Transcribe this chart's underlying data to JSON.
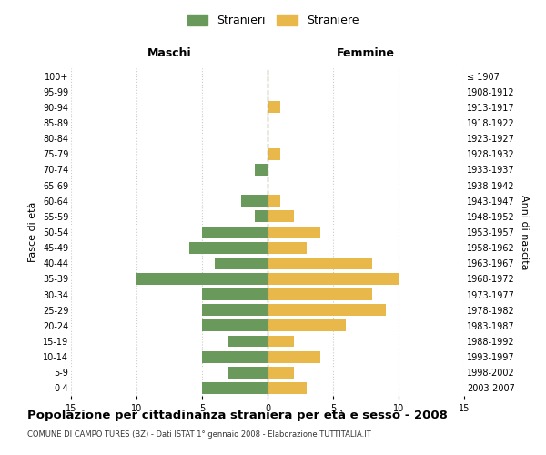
{
  "age_groups": [
    "100+",
    "95-99",
    "90-94",
    "85-89",
    "80-84",
    "75-79",
    "70-74",
    "65-69",
    "60-64",
    "55-59",
    "50-54",
    "45-49",
    "40-44",
    "35-39",
    "30-34",
    "25-29",
    "20-24",
    "15-19",
    "10-14",
    "5-9",
    "0-4"
  ],
  "birth_years": [
    "≤ 1907",
    "1908-1912",
    "1913-1917",
    "1918-1922",
    "1923-1927",
    "1928-1932",
    "1933-1937",
    "1938-1942",
    "1943-1947",
    "1948-1952",
    "1953-1957",
    "1958-1962",
    "1963-1967",
    "1968-1972",
    "1973-1977",
    "1978-1982",
    "1983-1987",
    "1988-1992",
    "1993-1997",
    "1998-2002",
    "2003-2007"
  ],
  "maschi": [
    0,
    0,
    0,
    0,
    0,
    0,
    1,
    0,
    2,
    1,
    5,
    6,
    4,
    10,
    5,
    5,
    5,
    3,
    5,
    3,
    5
  ],
  "femmine": [
    0,
    0,
    1,
    0,
    0,
    1,
    0,
    0,
    1,
    2,
    4,
    3,
    8,
    10,
    8,
    9,
    6,
    2,
    4,
    2,
    3
  ],
  "maschi_color": "#6a9a5b",
  "femmine_color": "#e8b84b",
  "title": "Popolazione per cittadinanza straniera per età e sesso - 2008",
  "subtitle": "COMUNE DI CAMPO TURES (BZ) - Dati ISTAT 1° gennaio 2008 - Elaborazione TUTTITALIA.IT",
  "xlabel_left": "Maschi",
  "xlabel_right": "Femmine",
  "ylabel_left": "Fasce di età",
  "ylabel_right": "Anni di nascita",
  "xlim": 15,
  "legend_maschi": "Stranieri",
  "legend_femmine": "Straniere",
  "bg_color": "#ffffff",
  "grid_color": "#cccccc",
  "bar_height": 0.75
}
